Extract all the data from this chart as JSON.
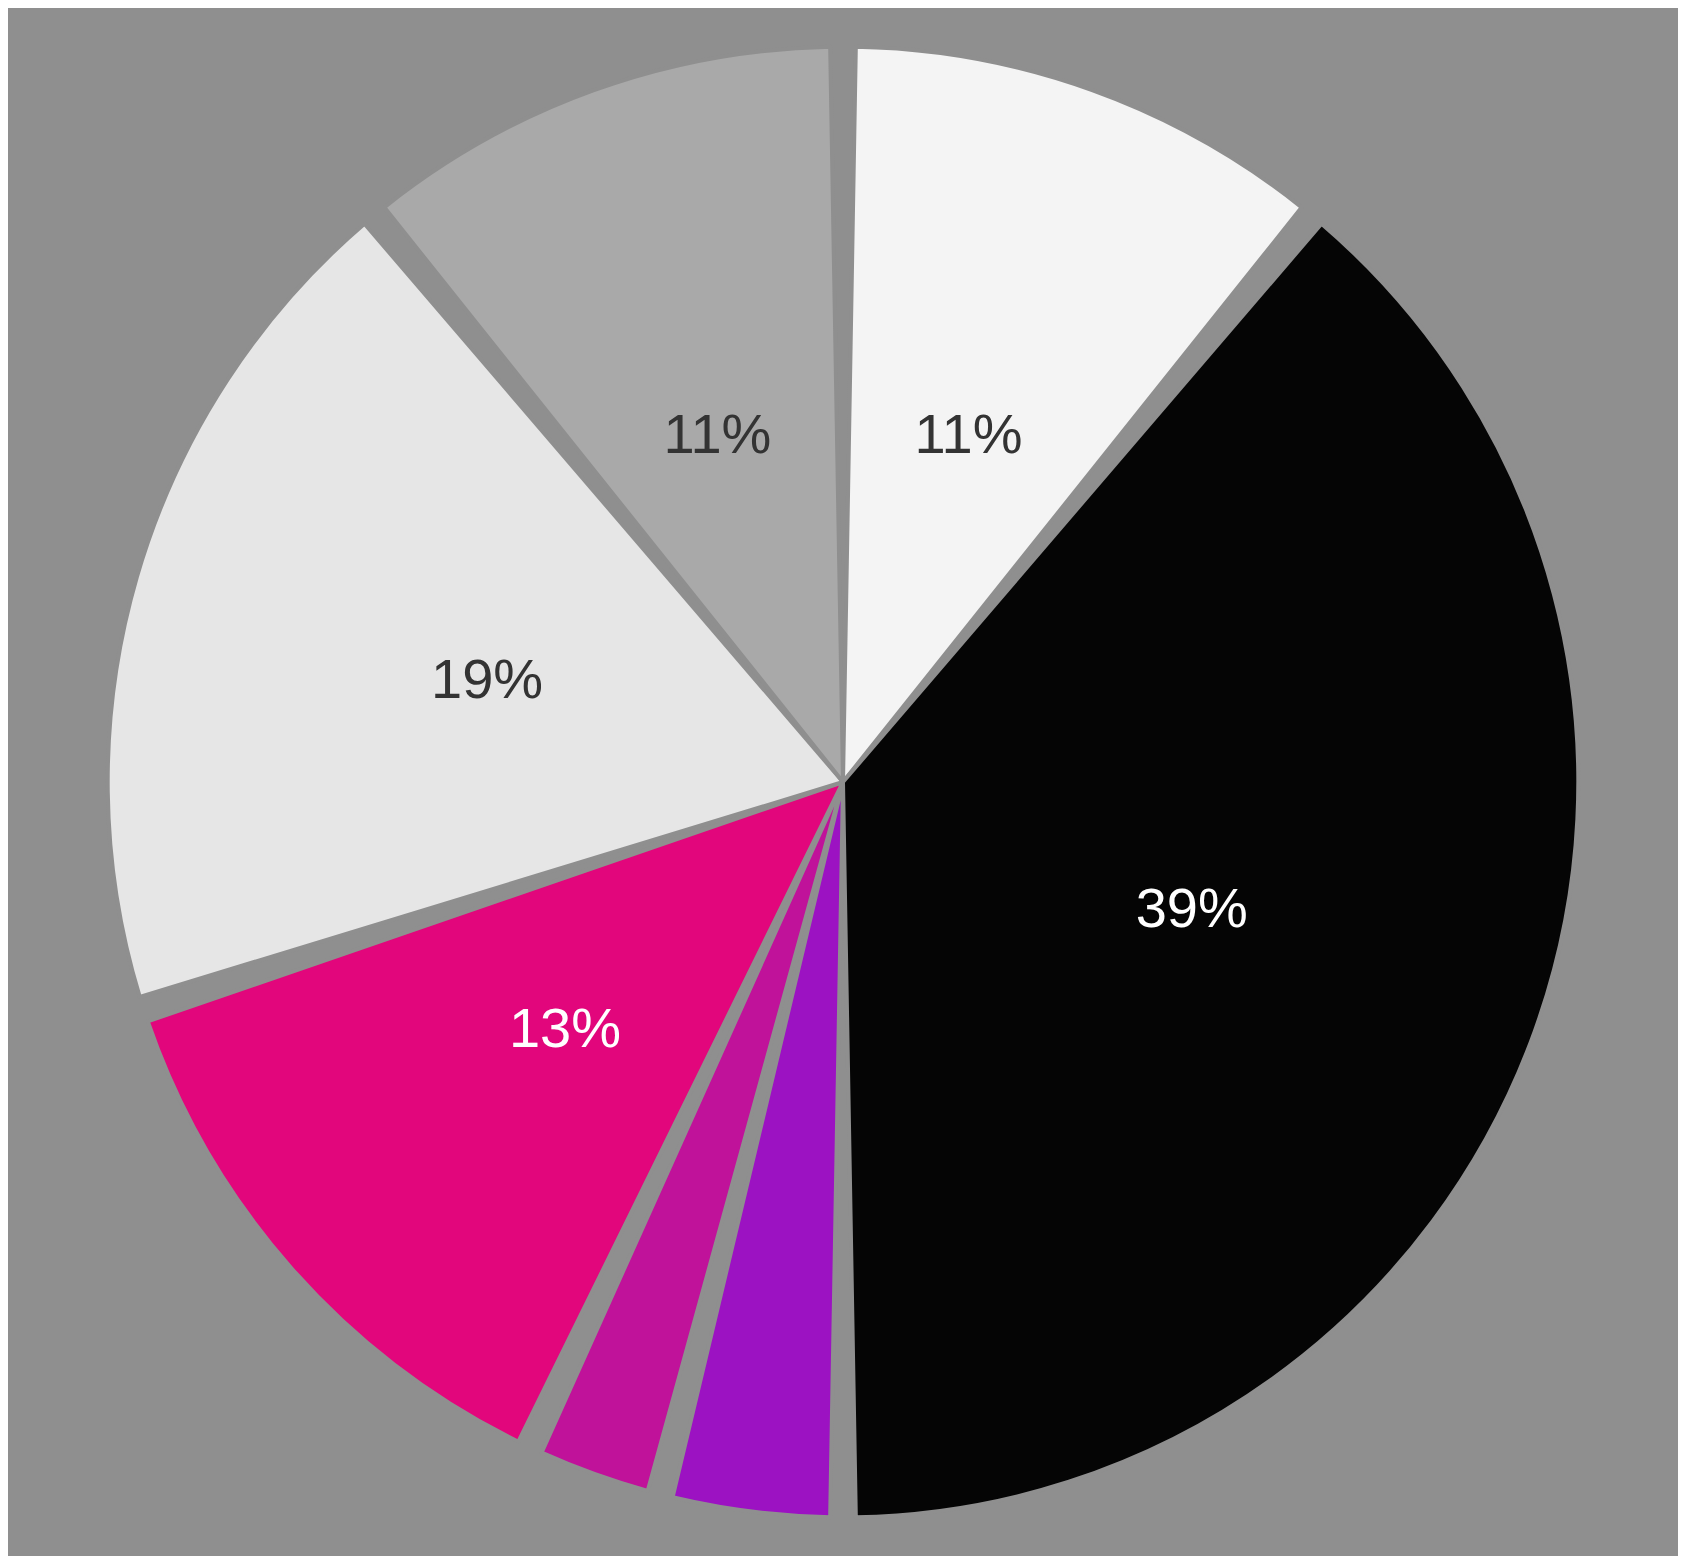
{
  "chart_data": {
    "type": "pie",
    "categories": [
      null,
      null,
      null,
      null,
      null,
      null,
      null
    ],
    "values": [
      11,
      39,
      4,
      3,
      13,
      19,
      11
    ],
    "colors": [
      "#f4f4f4",
      "#050505",
      "#9c12c2",
      "#c0129a",
      "#e2067c",
      "#e6e6e6",
      "#a9a9a9"
    ],
    "value_labels": [
      "11%",
      "39%",
      null,
      null,
      "13%",
      "19%",
      "11%"
    ]
  }
}
